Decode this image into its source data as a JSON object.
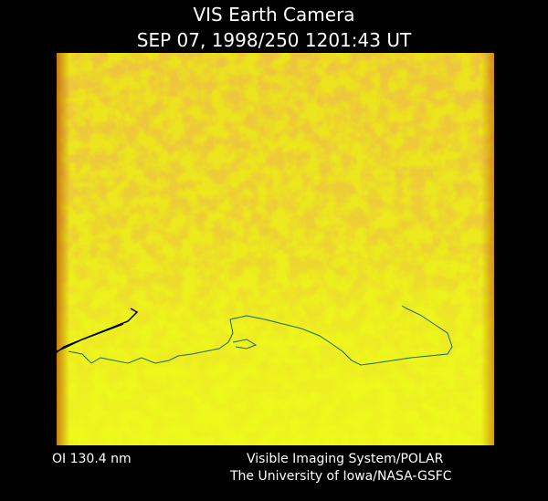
{
  "header": {
    "title": "VIS Earth Camera",
    "timestamp": "SEP 07, 1998/250 1201:43 UT"
  },
  "footer": {
    "wavelength": "OI  130.4 nm",
    "instrument": "Visible Imaging System/POLAR",
    "institution": "The University of Iowa/NASA-GSFC"
  }
}
